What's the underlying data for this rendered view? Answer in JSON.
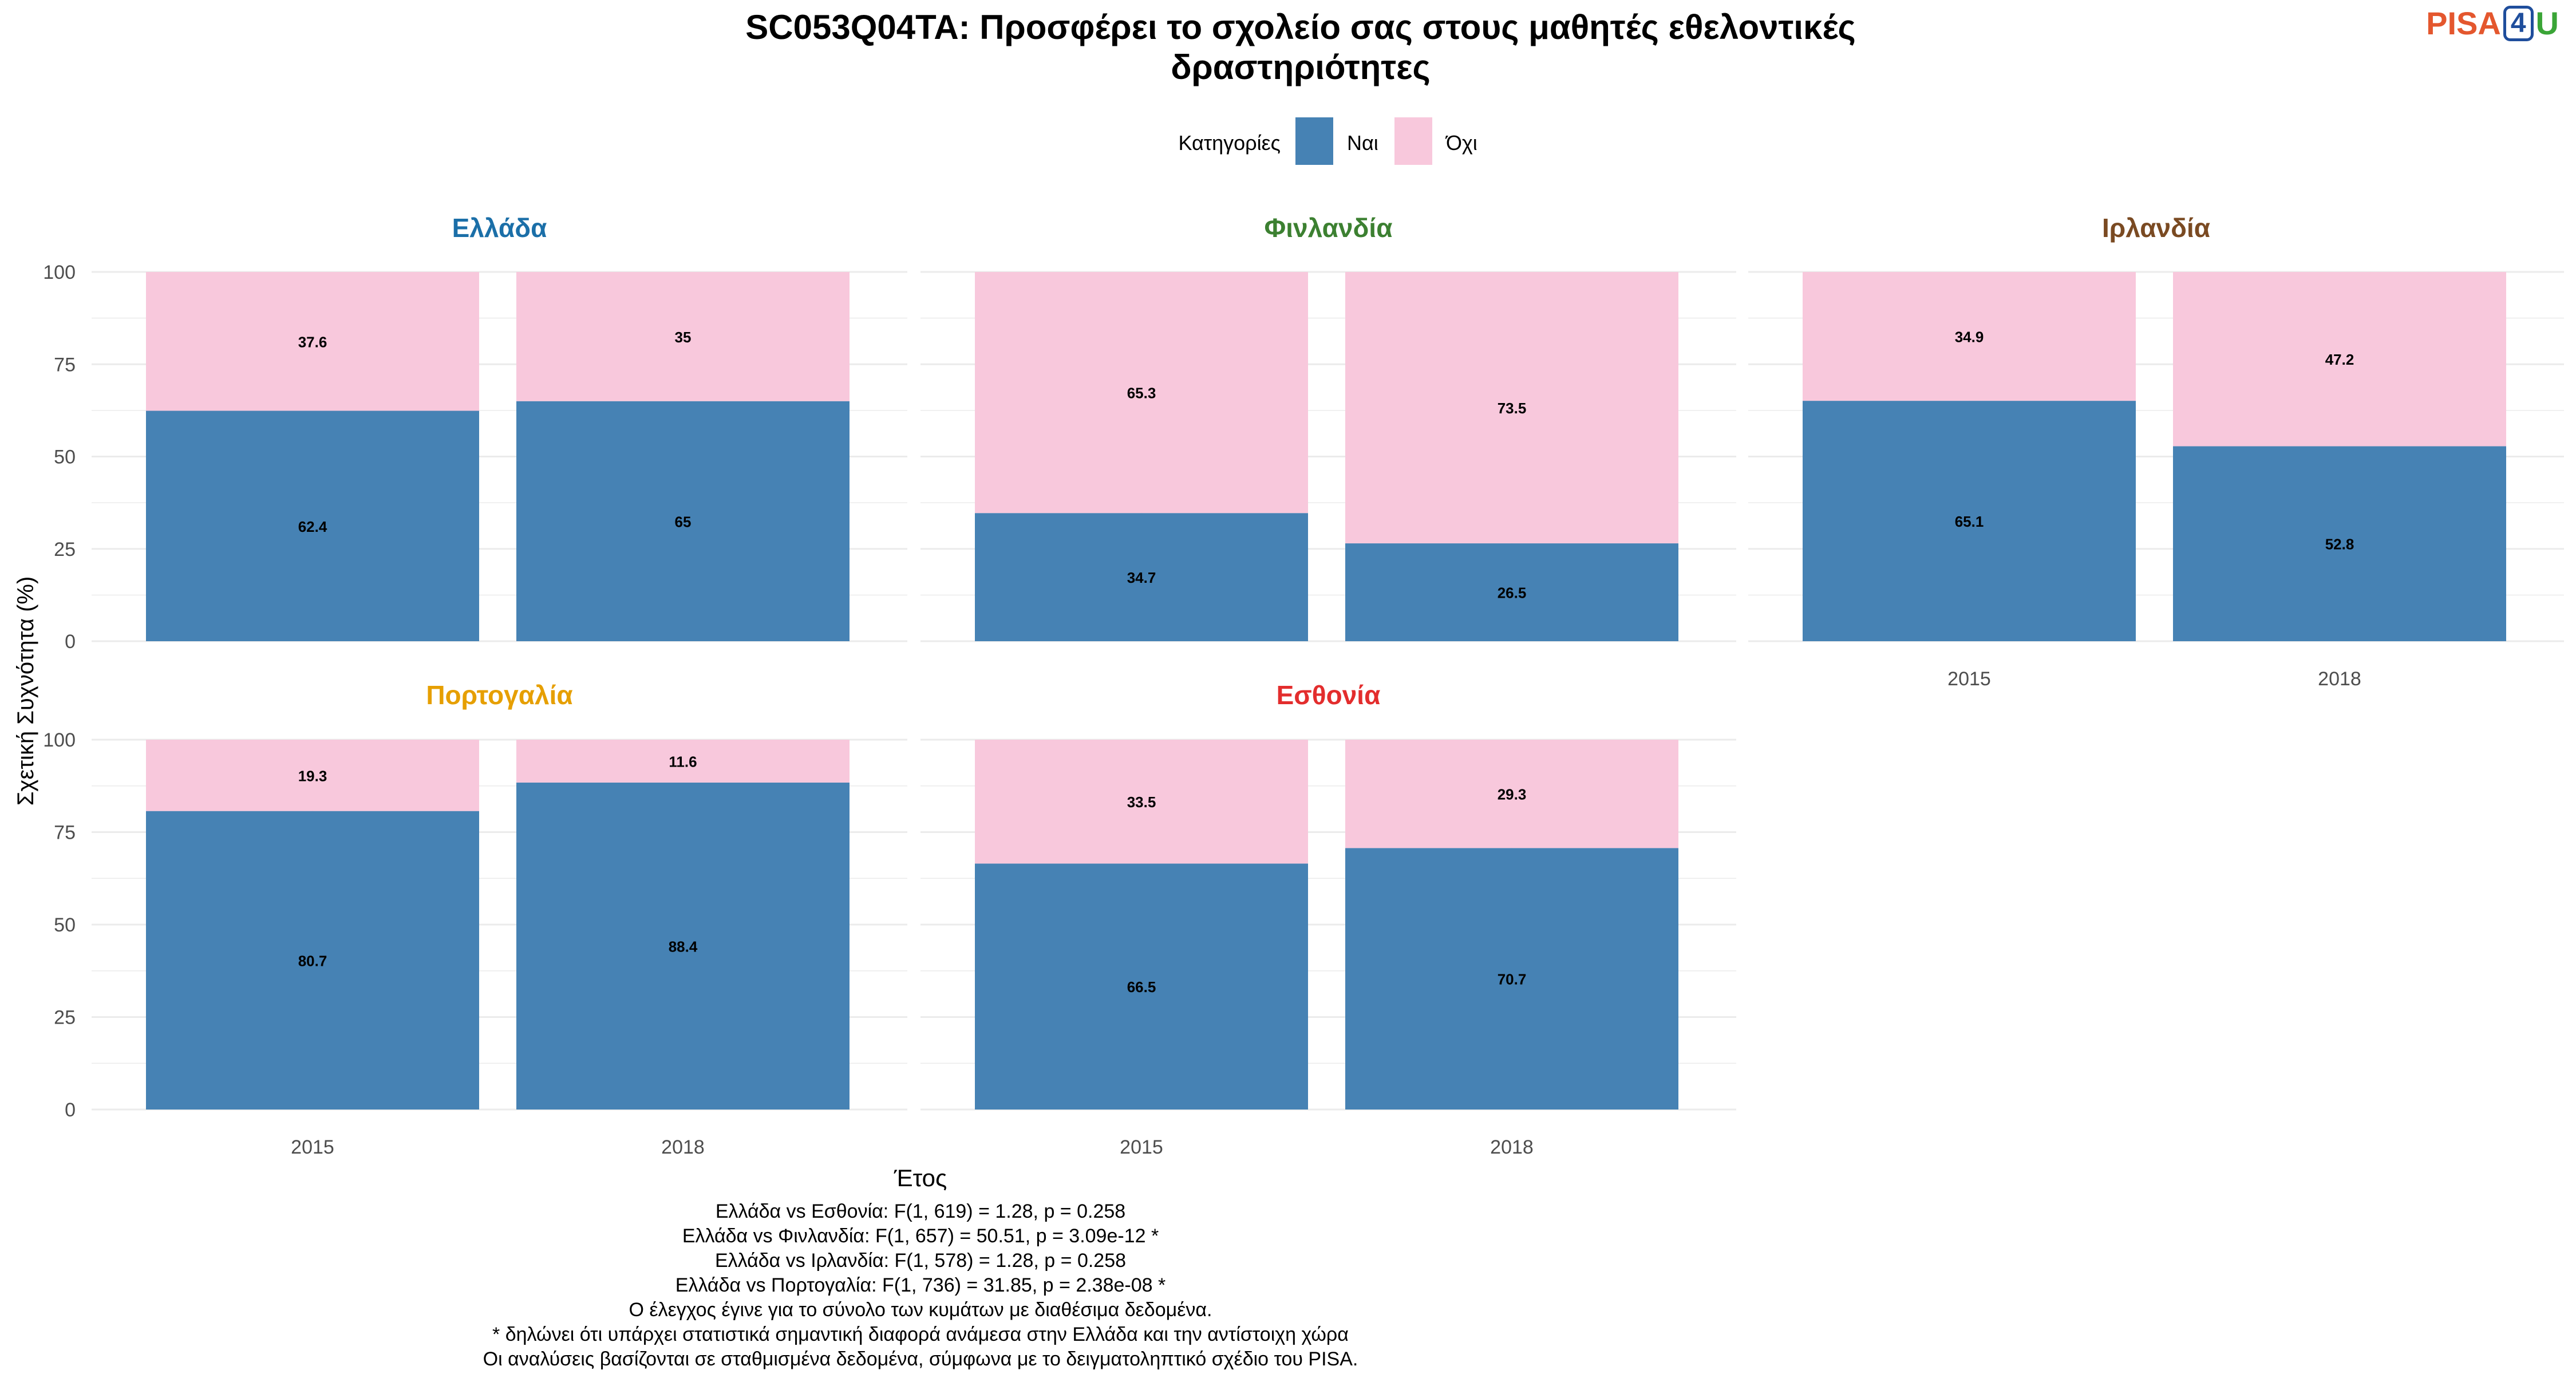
{
  "colors": {
    "yes": "#4682B4",
    "no": "#F8C8DC",
    "grid": "#EBEBEB",
    "text": "#000000",
    "tick": "#4D4D4D"
  },
  "logo": {
    "p1": "PISA",
    "p2": "4",
    "p3": "U"
  },
  "chart_data": {
    "type": "bar",
    "stacked": true,
    "title": "SC053Q04TA: Προσφέρει το σχολείο σας στους μαθητές εθελοντικές δραστηριότητες",
    "title_lines": [
      "SC053Q04TA: Προσφέρει το σχολείο σας στους μαθητές εθελοντικές",
      "δραστηριότητες"
    ],
    "xlabel": "Έτος",
    "ylabel": "Σχετική Συχνότητα (%)",
    "ylim": [
      0,
      100
    ],
    "yticks": [
      0,
      25,
      50,
      75,
      100
    ],
    "grid": true,
    "legend": {
      "position": "top",
      "title": "Κατηγορίες",
      "items": [
        {
          "name": "Ναι",
          "color": "#4682B4"
        },
        {
          "name": "Όχι",
          "color": "#F8C8DC"
        }
      ]
    },
    "categories": [
      "2015",
      "2018"
    ],
    "facets": [
      {
        "name": "Ελλάδα",
        "color": "#1B6FA8",
        "series": [
          {
            "name": "Ναι",
            "values": [
              62.4,
              65
            ]
          },
          {
            "name": "Όχι",
            "values": [
              37.6,
              35
            ]
          }
        ],
        "labels": {
          "Ναι": [
            "62.4",
            "65"
          ],
          "Όχι": [
            "37.6",
            "35"
          ]
        }
      },
      {
        "name": "Φινλανδία",
        "color": "#3C8031",
        "series": [
          {
            "name": "Ναι",
            "values": [
              34.7,
              26.5
            ]
          },
          {
            "name": "Όχι",
            "values": [
              65.3,
              73.5
            ]
          }
        ],
        "labels": {
          "Ναι": [
            "34.7",
            "26.5"
          ],
          "Όχι": [
            "65.3",
            "73.5"
          ]
        }
      },
      {
        "name": "Ιρλανδία",
        "color": "#7A4A22",
        "series": [
          {
            "name": "Ναι",
            "values": [
              65.1,
              52.8
            ]
          },
          {
            "name": "Όχι",
            "values": [
              34.9,
              47.2
            ]
          }
        ],
        "labels": {
          "Ναι": [
            "65.1",
            "52.8"
          ],
          "Όχι": [
            "34.9",
            "47.2"
          ]
        }
      },
      {
        "name": "Πορτογαλία",
        "color": "#E69F00",
        "series": [
          {
            "name": "Ναι",
            "values": [
              80.7,
              88.4
            ]
          },
          {
            "name": "Όχι",
            "values": [
              19.3,
              11.6
            ]
          }
        ],
        "labels": {
          "Ναι": [
            "80.7",
            "88.4"
          ],
          "Όχι": [
            "19.3",
            "11.6"
          ]
        }
      },
      {
        "name": "Εσθονία",
        "color": "#E32D2D",
        "series": [
          {
            "name": "Ναι",
            "values": [
              66.5,
              70.7
            ]
          },
          {
            "name": "Όχι",
            "values": [
              33.5,
              29.3
            ]
          }
        ],
        "labels": {
          "Ναι": [
            "66.5",
            "70.7"
          ],
          "Όχι": [
            "33.5",
            "29.3"
          ]
        }
      }
    ],
    "caption_lines": [
      "Ελλάδα vs Εσθονία: F(1, 619) = 1.28, p = 0.258",
      "Ελλάδα vs Φινλανδία: F(1, 657) = 50.51, p = 3.09e-12 *",
      "Ελλάδα vs Ιρλανδία: F(1, 578) = 1.28, p = 0.258",
      "Ελλάδα vs Πορτογαλία: F(1, 736) = 31.85, p = 2.38e-08 *",
      "Ο έλεγχος έγινε για το σύνολο των κυμάτων με διαθέσιμα δεδομένα.",
      "* δηλώνει ότι υπάρχει στατιστικά σημαντική διαφορά ανάμεσα στην Ελλάδα και την αντίστοιχη χώρα",
      "Οι αναλύσεις βασίζονται σε σταθμισμένα δεδομένα, σύμφωνα με το δειγματοληπτικό σχέδιο του PISA."
    ]
  }
}
